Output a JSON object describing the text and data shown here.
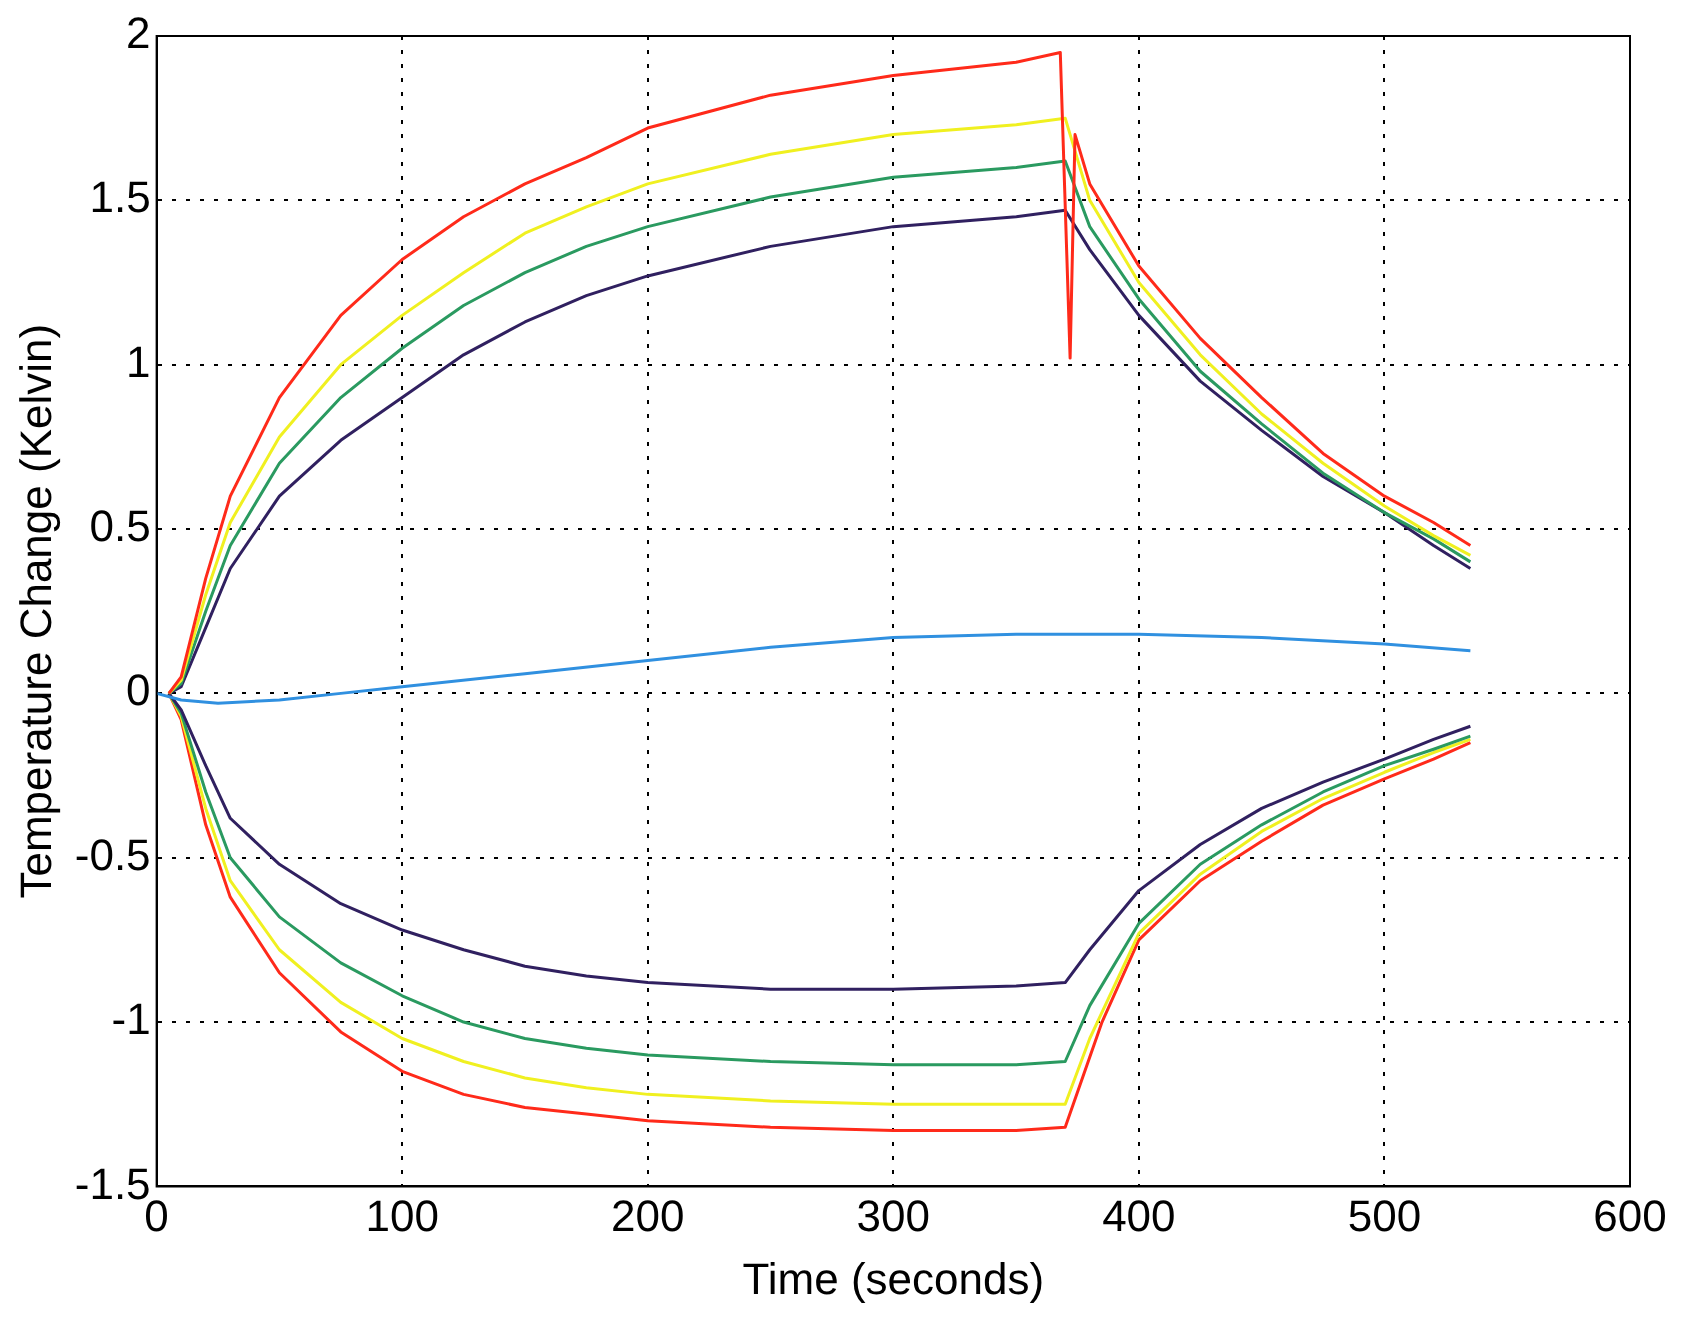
{
  "chart_data": {
    "type": "line",
    "xlabel": "Time (seconds)",
    "ylabel": "Temperature Change (Kelvin)",
    "xlim": [
      0,
      600
    ],
    "xticks": [
      0,
      100,
      200,
      300,
      400,
      500,
      600
    ],
    "ylim": [
      -1.5,
      2
    ],
    "yticks": [
      -1.5,
      -1,
      -0.5,
      0,
      0.5,
      1,
      1.5,
      2
    ],
    "grid": true,
    "marker": "none",
    "line_style": "solid",
    "series": [
      {
        "color": "#ff2a1a",
        "x": [
          5,
          10,
          20,
          30,
          50,
          75,
          100,
          125,
          150,
          175,
          200,
          250,
          300,
          350,
          368,
          372,
          374,
          380,
          400,
          425,
          450,
          475,
          500,
          520,
          535
        ],
        "values": [
          0,
          0.05,
          0.35,
          0.6,
          0.9,
          1.15,
          1.32,
          1.45,
          1.55,
          1.63,
          1.72,
          1.82,
          1.88,
          1.92,
          1.95,
          1.02,
          1.7,
          1.55,
          1.3,
          1.08,
          0.9,
          0.73,
          0.6,
          0.52,
          0.45
        ]
      },
      {
        "color": "#f0f020",
        "x": [
          5,
          10,
          20,
          30,
          50,
          75,
          100,
          125,
          150,
          175,
          200,
          250,
          300,
          350,
          370,
          380,
          400,
          425,
          450,
          475,
          500,
          520,
          535
        ],
        "values": [
          0,
          0.04,
          0.3,
          0.52,
          0.78,
          1.0,
          1.15,
          1.28,
          1.4,
          1.48,
          1.55,
          1.64,
          1.7,
          1.73,
          1.75,
          1.5,
          1.25,
          1.03,
          0.85,
          0.7,
          0.57,
          0.48,
          0.42
        ]
      },
      {
        "color": "#2a9a60",
        "x": [
          5,
          10,
          20,
          30,
          50,
          75,
          100,
          125,
          150,
          175,
          200,
          250,
          300,
          350,
          370,
          380,
          400,
          425,
          450,
          475,
          500,
          520,
          535
        ],
        "values": [
          0,
          0.03,
          0.25,
          0.45,
          0.7,
          0.9,
          1.05,
          1.18,
          1.28,
          1.36,
          1.42,
          1.51,
          1.57,
          1.6,
          1.62,
          1.42,
          1.2,
          0.98,
          0.82,
          0.67,
          0.55,
          0.47,
          0.4
        ]
      },
      {
        "color": "#302060",
        "x": [
          5,
          10,
          20,
          30,
          50,
          75,
          100,
          125,
          150,
          175,
          200,
          250,
          300,
          350,
          370,
          380,
          400,
          425,
          450,
          475,
          500,
          520,
          535
        ],
        "values": [
          0,
          0.02,
          0.2,
          0.38,
          0.6,
          0.77,
          0.9,
          1.03,
          1.13,
          1.21,
          1.27,
          1.36,
          1.42,
          1.45,
          1.47,
          1.35,
          1.15,
          0.95,
          0.8,
          0.66,
          0.55,
          0.45,
          0.38
        ]
      },
      {
        "color": "#3090e0",
        "x": [
          0,
          10,
          25,
          50,
          75,
          100,
          150,
          200,
          250,
          300,
          350,
          400,
          450,
          500,
          535
        ],
        "values": [
          0,
          -0.02,
          -0.03,
          -0.02,
          0,
          0.02,
          0.06,
          0.1,
          0.14,
          0.17,
          0.18,
          0.18,
          0.17,
          0.15,
          0.13
        ]
      },
      {
        "color": "#302060",
        "x": [
          5,
          10,
          20,
          30,
          50,
          75,
          100,
          125,
          150,
          175,
          200,
          250,
          300,
          350,
          370,
          380,
          400,
          425,
          450,
          475,
          500,
          520,
          535
        ],
        "values": [
          0,
          -0.05,
          -0.22,
          -0.38,
          -0.52,
          -0.64,
          -0.72,
          -0.78,
          -0.83,
          -0.86,
          -0.88,
          -0.9,
          -0.9,
          -0.89,
          -0.88,
          -0.78,
          -0.6,
          -0.46,
          -0.35,
          -0.27,
          -0.2,
          -0.14,
          -0.1
        ]
      },
      {
        "color": "#2a9a60",
        "x": [
          5,
          10,
          20,
          30,
          50,
          75,
          100,
          125,
          150,
          175,
          200,
          250,
          300,
          350,
          370,
          380,
          400,
          425,
          450,
          475,
          500,
          520,
          535
        ],
        "values": [
          0,
          -0.06,
          -0.3,
          -0.5,
          -0.68,
          -0.82,
          -0.92,
          -1.0,
          -1.05,
          -1.08,
          -1.1,
          -1.12,
          -1.13,
          -1.13,
          -1.12,
          -0.95,
          -0.7,
          -0.52,
          -0.4,
          -0.3,
          -0.22,
          -0.17,
          -0.13
        ]
      },
      {
        "color": "#f0f020",
        "x": [
          5,
          10,
          20,
          30,
          50,
          75,
          100,
          125,
          150,
          175,
          200,
          250,
          300,
          350,
          370,
          380,
          400,
          425,
          450,
          475,
          500,
          520,
          535
        ],
        "values": [
          0,
          -0.07,
          -0.35,
          -0.57,
          -0.78,
          -0.94,
          -1.05,
          -1.12,
          -1.17,
          -1.2,
          -1.22,
          -1.24,
          -1.25,
          -1.25,
          -1.25,
          -1.05,
          -0.73,
          -0.55,
          -0.42,
          -0.32,
          -0.24,
          -0.18,
          -0.14
        ]
      },
      {
        "color": "#ff2a1a",
        "x": [
          5,
          10,
          20,
          30,
          50,
          75,
          100,
          125,
          150,
          175,
          200,
          250,
          300,
          350,
          370,
          385,
          400,
          425,
          450,
          475,
          500,
          520,
          535
        ],
        "values": [
          0,
          -0.08,
          -0.4,
          -0.62,
          -0.85,
          -1.03,
          -1.15,
          -1.22,
          -1.26,
          -1.28,
          -1.3,
          -1.32,
          -1.33,
          -1.33,
          -1.32,
          -1.0,
          -0.75,
          -0.57,
          -0.45,
          -0.34,
          -0.26,
          -0.2,
          -0.15
        ]
      }
    ]
  }
}
